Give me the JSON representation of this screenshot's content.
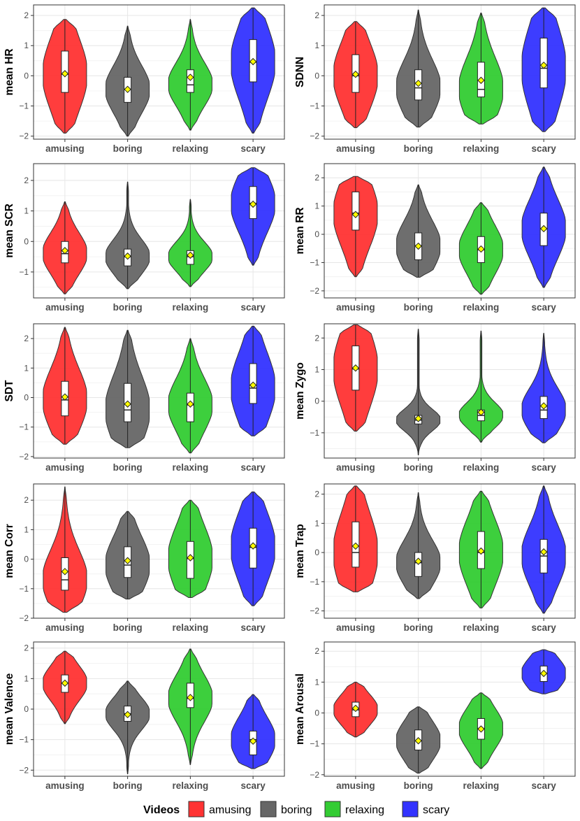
{
  "colors": {
    "amusing": "#ff3333",
    "boring": "#666666",
    "relaxing": "#33cc33",
    "scary": "#3333ff",
    "mean_marker": "#ffff00",
    "grid": "#e6e6e6",
    "panel_border": "#333333"
  },
  "legend": {
    "title": "Videos",
    "items": [
      {
        "label": "amusing",
        "color": "#ff3333"
      },
      {
        "label": "boring",
        "color": "#666666"
      },
      {
        "label": "relaxing",
        "color": "#33cc33"
      },
      {
        "label": "scary",
        "color": "#3333ff"
      }
    ]
  },
  "chart_data": [
    {
      "type": "violin",
      "ylabel": "mean HR",
      "ylim": [
        -2.1,
        2.35
      ],
      "yticks": [
        -2,
        -1,
        0,
        1,
        2
      ],
      "categories": [
        "amusing",
        "boring",
        "relaxing",
        "scary"
      ],
      "violins": [
        {
          "min": -1.9,
          "max": 1.87,
          "q1": -0.55,
          "median": 0.05,
          "q3": 0.82,
          "mean": 0.07
        },
        {
          "min": -2.0,
          "max": 1.65,
          "q1": -0.88,
          "median": -0.45,
          "q3": -0.05,
          "mean": -0.45
        },
        {
          "min": -1.8,
          "max": 1.87,
          "q1": -0.55,
          "median": -0.3,
          "q3": 0.2,
          "mean": -0.05
        },
        {
          "min": -1.9,
          "max": 2.25,
          "q1": -0.2,
          "median": 0.45,
          "q3": 1.2,
          "mean": 0.47
        }
      ]
    },
    {
      "type": "violin",
      "ylabel": "SDNN",
      "ylim": [
        -2.1,
        2.35
      ],
      "yticks": [
        -2,
        -1,
        0,
        1,
        2
      ],
      "categories": [
        "amusing",
        "boring",
        "relaxing",
        "scary"
      ],
      "violins": [
        {
          "min": -1.72,
          "max": 1.8,
          "q1": -0.55,
          "median": 0.0,
          "q3": 0.7,
          "mean": 0.05
        },
        {
          "min": -1.7,
          "max": 2.18,
          "q1": -0.8,
          "median": -0.4,
          "q3": 0.2,
          "mean": -0.25
        },
        {
          "min": -1.6,
          "max": 2.08,
          "q1": -0.7,
          "median": -0.45,
          "q3": 0.45,
          "mean": -0.15
        },
        {
          "min": -1.85,
          "max": 2.25,
          "q1": -0.4,
          "median": 0.25,
          "q3": 1.25,
          "mean": 0.35
        }
      ]
    },
    {
      "type": "violin",
      "ylabel": "mean SCR",
      "ylim": [
        -1.85,
        2.55
      ],
      "yticks": [
        -1,
        0,
        1,
        2
      ],
      "categories": [
        "amusing",
        "boring",
        "relaxing",
        "scary"
      ],
      "violins": [
        {
          "min": -1.72,
          "max": 1.3,
          "q1": -0.7,
          "median": -0.4,
          "q3": 0.0,
          "mean": -0.3
        },
        {
          "min": -1.55,
          "max": 1.95,
          "q1": -0.8,
          "median": -0.5,
          "q3": -0.25,
          "mean": -0.48
        },
        {
          "min": -1.48,
          "max": 1.38,
          "q1": -0.75,
          "median": -0.5,
          "q3": -0.3,
          "mean": -0.45
        },
        {
          "min": -0.78,
          "max": 2.42,
          "q1": 0.75,
          "median": 1.25,
          "q3": 1.8,
          "mean": 1.22
        }
      ]
    },
    {
      "type": "violin",
      "ylabel": "mean RR",
      "ylim": [
        -2.25,
        2.5
      ],
      "yticks": [
        -2,
        -1,
        0,
        1,
        2
      ],
      "categories": [
        "amusing",
        "boring",
        "relaxing",
        "scary"
      ],
      "violins": [
        {
          "min": -1.5,
          "max": 2.05,
          "q1": 0.15,
          "median": 0.75,
          "q3": 1.5,
          "mean": 0.7
        },
        {
          "min": -1.52,
          "max": 1.75,
          "q1": -0.9,
          "median": -0.4,
          "q3": 0.05,
          "mean": -0.42
        },
        {
          "min": -2.12,
          "max": 1.12,
          "q1": -1.0,
          "median": -0.55,
          "q3": -0.08,
          "mean": -0.52
        },
        {
          "min": -1.88,
          "max": 2.38,
          "q1": -0.4,
          "median": 0.2,
          "q3": 0.75,
          "mean": 0.2
        }
      ]
    },
    {
      "type": "violin",
      "ylabel": "SDT",
      "ylim": [
        -2.05,
        2.5
      ],
      "yticks": [
        -2,
        -1,
        0,
        1,
        2
      ],
      "categories": [
        "amusing",
        "boring",
        "relaxing",
        "scary"
      ],
      "violins": [
        {
          "min": -1.58,
          "max": 2.38,
          "q1": -0.62,
          "median": -0.08,
          "q3": 0.55,
          "mean": 0.02
        },
        {
          "min": -1.7,
          "max": 2.28,
          "q1": -0.82,
          "median": -0.42,
          "q3": 0.48,
          "mean": -0.22
        },
        {
          "min": -1.88,
          "max": 2.0,
          "q1": -0.82,
          "median": -0.25,
          "q3": 0.15,
          "mean": -0.22
        },
        {
          "min": -1.3,
          "max": 2.42,
          "q1": -0.2,
          "median": 0.32,
          "q3": 1.15,
          "mean": 0.42
        }
      ]
    },
    {
      "type": "violin",
      "ylabel": "mean Zygo",
      "ylim": [
        -1.8,
        2.45
      ],
      "yticks": [
        -1,
        0,
        1,
        2
      ],
      "categories": [
        "amusing",
        "boring",
        "relaxing",
        "scary"
      ],
      "violins": [
        {
          "min": -0.95,
          "max": 2.42,
          "q1": 0.35,
          "median": 1.02,
          "q3": 1.75,
          "mean": 1.05
        },
        {
          "min": -1.7,
          "max": 2.28,
          "q1": -0.72,
          "median": -0.6,
          "q3": -0.45,
          "mean": -0.55
        },
        {
          "min": -1.3,
          "max": 2.22,
          "q1": -0.62,
          "median": -0.45,
          "q3": -0.28,
          "mean": -0.35
        },
        {
          "min": -1.32,
          "max": 2.15,
          "q1": -0.55,
          "median": -0.28,
          "q3": 0.15,
          "mean": -0.15
        }
      ]
    },
    {
      "type": "violin",
      "ylabel": "mean Corr",
      "ylim": [
        -2.0,
        2.55
      ],
      "yticks": [
        -2,
        -1,
        0,
        1,
        2
      ],
      "categories": [
        "amusing",
        "boring",
        "relaxing",
        "scary"
      ],
      "violins": [
        {
          "min": -1.8,
          "max": 2.45,
          "q1": -1.05,
          "median": -0.7,
          "q3": 0.05,
          "mean": -0.42
        },
        {
          "min": -1.35,
          "max": 1.62,
          "q1": -0.62,
          "median": -0.2,
          "q3": 0.42,
          "mean": -0.05
        },
        {
          "min": -1.3,
          "max": 2.0,
          "q1": -0.65,
          "median": 0.02,
          "q3": 0.6,
          "mean": 0.05
        },
        {
          "min": -1.58,
          "max": 2.28,
          "q1": -0.3,
          "median": 0.4,
          "q3": 1.05,
          "mean": 0.45
        }
      ]
    },
    {
      "type": "violin",
      "ylabel": "mean Trap",
      "ylim": [
        -2.25,
        2.35
      ],
      "yticks": [
        -2,
        -1,
        0,
        1,
        2
      ],
      "categories": [
        "amusing",
        "boring",
        "relaxing",
        "scary"
      ],
      "violins": [
        {
          "min": -1.35,
          "max": 2.28,
          "q1": -0.5,
          "median": 0.0,
          "q3": 1.05,
          "mean": 0.22
        },
        {
          "min": -1.58,
          "max": 2.05,
          "q1": -0.82,
          "median": -0.35,
          "q3": 0.0,
          "mean": -0.3
        },
        {
          "min": -1.9,
          "max": 2.1,
          "q1": -0.55,
          "median": 0.0,
          "q3": 0.72,
          "mean": 0.05
        },
        {
          "min": -2.08,
          "max": 2.28,
          "q1": -0.7,
          "median": -0.12,
          "q3": 0.45,
          "mean": 0.02
        }
      ]
    },
    {
      "type": "violin",
      "ylabel": "mean Valence",
      "ylim": [
        -2.2,
        2.2
      ],
      "yticks": [
        -2,
        -1,
        0,
        1,
        2
      ],
      "categories": [
        "amusing",
        "boring",
        "relaxing",
        "scary"
      ],
      "violins": [
        {
          "min": -0.48,
          "max": 1.9,
          "q1": 0.55,
          "median": 0.85,
          "q3": 1.12,
          "mean": 0.85
        },
        {
          "min": -2.12,
          "max": 0.92,
          "q1": -0.4,
          "median": -0.15,
          "q3": 0.1,
          "mean": -0.18
        },
        {
          "min": -1.82,
          "max": 1.97,
          "q1": 0.05,
          "median": 0.35,
          "q3": 0.85,
          "mean": 0.38
        },
        {
          "min": -1.95,
          "max": 0.48,
          "q1": -1.5,
          "median": -1.0,
          "q3": -0.72,
          "mean": -1.05
        }
      ]
    },
    {
      "type": "violin",
      "ylabel": "mean Arousal",
      "ylim": [
        -2.05,
        2.3
      ],
      "yticks": [
        -2,
        -1,
        0,
        1,
        2
      ],
      "categories": [
        "amusing",
        "boring",
        "relaxing",
        "scary"
      ],
      "violins": [
        {
          "min": -0.78,
          "max": 1.0,
          "q1": -0.12,
          "median": 0.1,
          "q3": 0.35,
          "mean": 0.15
        },
        {
          "min": -1.95,
          "max": 0.2,
          "q1": -1.2,
          "median": -0.9,
          "q3": -0.55,
          "mean": -0.9
        },
        {
          "min": -1.8,
          "max": 0.65,
          "q1": -0.85,
          "median": -0.5,
          "q3": -0.18,
          "mean": -0.52
        },
        {
          "min": 0.62,
          "max": 2.05,
          "q1": 1.02,
          "median": 1.28,
          "q3": 1.52,
          "mean": 1.28
        }
      ]
    }
  ]
}
